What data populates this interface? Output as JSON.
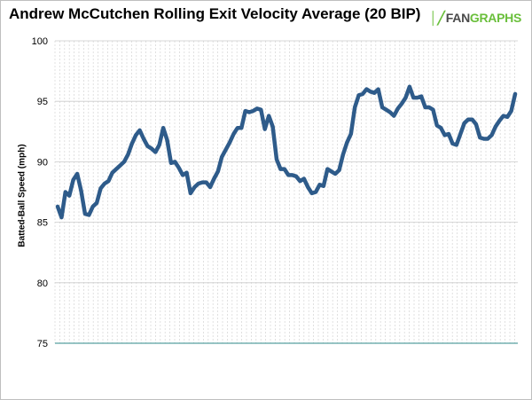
{
  "chart_data": {
    "type": "line",
    "title": "Andrew McCutchen Rolling Exit Velocity Average (20 BIP)",
    "ylabel": "Batted-Ball Speed (mph)",
    "xlabel": "",
    "ylim": [
      75,
      100
    ],
    "yticks": [
      "75",
      "80",
      "85",
      "90",
      "95",
      "100"
    ],
    "grid": true,
    "series": [
      {
        "color": "#2e5b8a",
        "values": [
          86.3,
          85.4,
          87.5,
          87.2,
          88.5,
          89.0,
          87.6,
          85.7,
          85.6,
          86.3,
          86.6,
          87.8,
          88.2,
          88.4,
          89.1,
          89.4,
          89.7,
          90.0,
          90.6,
          91.5,
          92.2,
          92.6,
          91.9,
          91.3,
          91.1,
          90.8,
          91.4,
          92.8,
          91.8,
          89.9,
          90.0,
          89.5,
          88.9,
          89.1,
          87.4,
          87.9,
          88.2,
          88.3,
          88.3,
          87.9,
          88.6,
          89.2,
          90.4,
          91.0,
          91.6,
          92.3,
          92.8,
          92.8,
          94.2,
          94.1,
          94.2,
          94.4,
          94.3,
          92.7,
          93.8,
          92.9,
          90.2,
          89.4,
          89.4,
          88.9,
          88.9,
          88.8,
          88.4,
          88.6,
          87.9,
          87.4,
          87.5,
          88.1,
          88.0,
          89.4,
          89.2,
          89.0,
          89.3,
          90.6,
          91.6,
          92.3,
          94.5,
          95.5,
          95.6,
          96.0,
          95.8,
          95.7,
          96.0,
          94.5,
          94.3,
          94.1,
          93.8,
          94.4,
          94.8,
          95.3,
          96.2,
          95.3,
          95.3,
          95.4,
          94.5,
          94.5,
          94.3,
          93.0,
          92.8,
          92.2,
          92.3,
          91.5,
          91.4,
          92.3,
          93.2,
          93.5,
          93.5,
          93.1,
          92.0,
          91.9,
          91.9,
          92.2,
          92.9,
          93.4,
          93.8,
          93.7,
          94.2,
          95.6
        ]
      }
    ]
  },
  "logo": {
    "mark": "│╱",
    "fan": "FAN",
    "graphs": "GRAPHS"
  }
}
